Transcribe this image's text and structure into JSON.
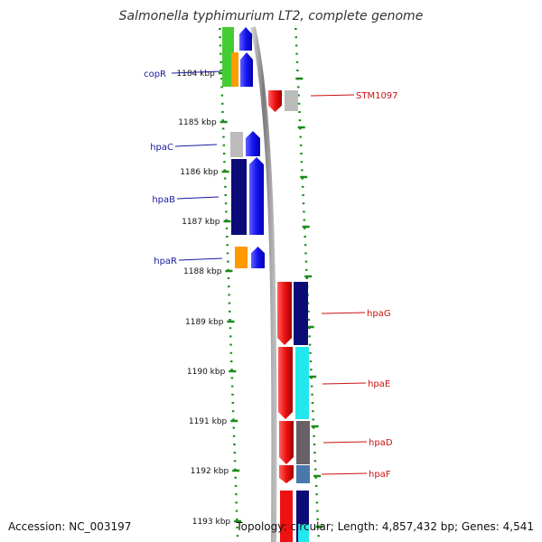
{
  "title": "Salmonella typhimurium LT2, complete genome",
  "accession_text": "Accession: NC_003197",
  "topology_text": "Topology: circular; Length: 4,857,432 bp; Genes: 4,541",
  "kbp_labels": [
    "1184 kbp",
    "1185 kbp",
    "1186 kbp",
    "1187 kbp",
    "1188 kbp",
    "1189 kbp",
    "1190 kbp",
    "1191 kbp",
    "1192 kbp",
    "1193 kbp"
  ],
  "left_genes": [
    {
      "label": "copR",
      "color": "#1a1aa0"
    },
    {
      "label": "hpaC",
      "color": "#1a1aa0"
    },
    {
      "label": "hpaB",
      "color": "#1a1aa0"
    },
    {
      "label": "hpaR",
      "color": "#1a1aa0"
    }
  ],
  "right_genes": [
    {
      "label": "STM1097",
      "color": "#cc1111"
    },
    {
      "label": "hpaG",
      "color": "#cc1111"
    },
    {
      "label": "hpaE",
      "color": "#cc1111"
    },
    {
      "label": "hpaD",
      "color": "#cc1111"
    },
    {
      "label": "hpaF",
      "color": "#cc1111"
    }
  ],
  "colors": {
    "tick_green": "#1c8a1c",
    "backbone": "#888888",
    "forward_blue": "#1414ee",
    "reverse_red": "#ee1111",
    "navy": "#0c0c78",
    "cyan": "#22e8ee",
    "gray_dark": "#6a6068",
    "steel_blue": "#4a78aa",
    "orange": "#ff9a00",
    "light_gray": "#bbbbbb",
    "green": "#44cc33"
  }
}
